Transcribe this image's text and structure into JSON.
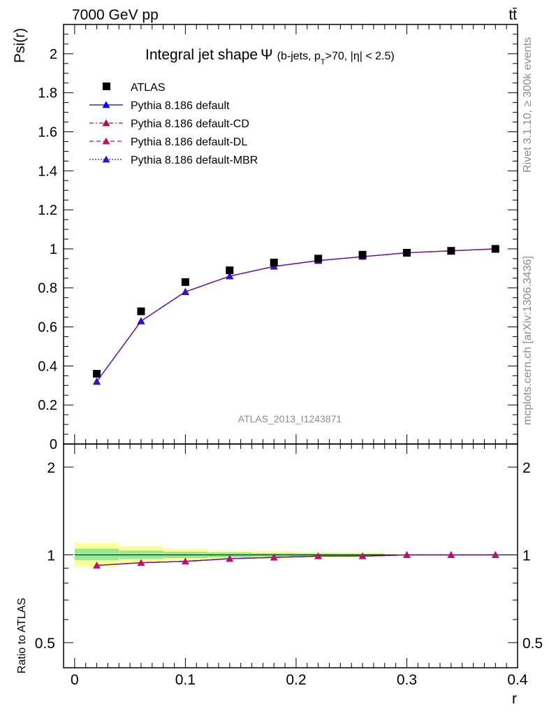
{
  "header": {
    "energy_label": "7000 GeV pp",
    "process_label": "tt̄"
  },
  "side": {
    "rivet": "Rivet 3.1.10, ≥ 300k events",
    "mcplots": "mcplots.cern.ch [arXiv:1306.3436]"
  },
  "watermark": "ATLAS_2013_I1243871",
  "colors": {
    "data": "#000000",
    "default": "#0000ff",
    "cd": "#b0103a",
    "dl": "#c0106e",
    "mbr": "#3311cc",
    "band_inner": "#90ee90",
    "band_outer": "#ffff99"
  },
  "chart_data": [
    {
      "type": "line",
      "title": "Integral jet shape Ψ (b-jets, p_T>70, |η| < 2.5)",
      "title_main": "Integral jet shape",
      "title_psi": "Ψ",
      "title_sub_a": "(b-jets, p",
      "title_sub_T": "T",
      "title_sub_b": ">70, |η| < 2.5)",
      "xlabel": "r",
      "ylabel": "Psi(r)",
      "xlim": [
        -0.01,
        0.4
      ],
      "ylim": [
        0,
        2.15
      ],
      "yticks": [
        "0",
        "0.2",
        "0.4",
        "0.6",
        "0.8",
        "1",
        "1.2",
        "1.4",
        "1.6",
        "1.8",
        "2"
      ],
      "ytick_values": [
        0,
        0.2,
        0.4,
        0.6,
        0.8,
        1.0,
        1.2,
        1.4,
        1.6,
        1.8,
        2.0
      ],
      "x": [
        0.02,
        0.06,
        0.1,
        0.14,
        0.18,
        0.22,
        0.26,
        0.3,
        0.34,
        0.38
      ],
      "series": [
        {
          "name": "ATLAS",
          "key": "data",
          "values": [
            0.36,
            0.68,
            0.83,
            0.89,
            0.93,
            0.95,
            0.97,
            0.98,
            0.99,
            1.0
          ]
        },
        {
          "name": "Pythia 8.186 default",
          "key": "default",
          "values": [
            0.32,
            0.63,
            0.78,
            0.86,
            0.91,
            0.94,
            0.96,
            0.98,
            0.99,
            1.0
          ]
        },
        {
          "name": "Pythia 8.186 default-CD",
          "key": "cd",
          "values": [
            0.32,
            0.63,
            0.78,
            0.86,
            0.91,
            0.94,
            0.96,
            0.98,
            0.99,
            1.0
          ]
        },
        {
          "name": "Pythia 8.186 default-DL",
          "key": "dl",
          "values": [
            0.32,
            0.63,
            0.78,
            0.86,
            0.91,
            0.94,
            0.96,
            0.98,
            0.99,
            1.0
          ]
        },
        {
          "name": "Pythia 8.186 default-MBR",
          "key": "mbr",
          "values": [
            0.32,
            0.63,
            0.78,
            0.86,
            0.91,
            0.94,
            0.96,
            0.98,
            0.99,
            1.0
          ]
        }
      ],
      "legend": {
        "placement": "top-left",
        "entries": [
          "ATLAS",
          "Pythia 8.186 default",
          "Pythia 8.186 default-CD",
          "Pythia 8.186 default-DL",
          "Pythia 8.186 default-MBR"
        ]
      }
    },
    {
      "type": "line",
      "title": "",
      "xlabel": "r",
      "ylabel": "Ratio to ATLAS",
      "yscale": "log",
      "xlim": [
        -0.01,
        0.4
      ],
      "ylim": [
        0.41,
        2.4
      ],
      "xticks": [
        "0",
        "0.1",
        "0.2",
        "0.3",
        "0.4"
      ],
      "xtick_values": [
        0,
        0.1,
        0.2,
        0.3,
        0.4
      ],
      "yticks": [
        "0.5",
        "1",
        "2"
      ],
      "ytick_values": [
        0.5,
        1,
        2
      ],
      "x": [
        0.02,
        0.06,
        0.1,
        0.14,
        0.18,
        0.22,
        0.26,
        0.3,
        0.34,
        0.38
      ],
      "ratio_values": [
        0.92,
        0.94,
        0.95,
        0.97,
        0.98,
        0.99,
        0.99,
        1.0,
        1.0,
        1.0
      ],
      "bands": {
        "bins": [
          [
            0.0,
            0.04
          ],
          [
            0.04,
            0.08
          ],
          [
            0.08,
            0.12
          ],
          [
            0.12,
            0.16
          ],
          [
            0.16,
            0.2
          ],
          [
            0.2,
            0.24
          ],
          [
            0.24,
            0.28
          ],
          [
            0.28,
            0.32
          ],
          [
            0.32,
            0.36
          ],
          [
            0.36,
            0.4
          ]
        ],
        "outer": [
          [
            0.91,
            1.1
          ],
          [
            0.94,
            1.07
          ],
          [
            0.955,
            1.05
          ],
          [
            0.965,
            1.035
          ],
          [
            0.97,
            1.03
          ],
          [
            0.975,
            1.025
          ],
          [
            0.98,
            1.02
          ],
          [
            0.995,
            1.005
          ],
          [
            0.997,
            1.003
          ],
          [
            0.998,
            1.002
          ]
        ],
        "inner": [
          [
            0.96,
            1.05
          ],
          [
            0.97,
            1.035
          ],
          [
            0.975,
            1.025
          ],
          [
            0.98,
            1.02
          ],
          [
            0.985,
            1.015
          ],
          [
            0.988,
            1.012
          ],
          [
            0.99,
            1.01
          ],
          [
            0.997,
            1.003
          ],
          [
            0.998,
            1.002
          ],
          [
            0.999,
            1.001
          ]
        ]
      }
    }
  ]
}
